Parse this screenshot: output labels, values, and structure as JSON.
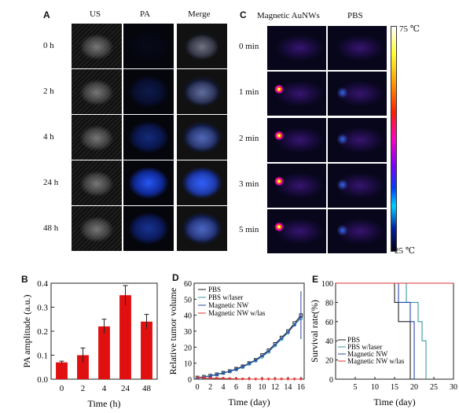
{
  "panels": {
    "A": "A",
    "B": "B",
    "C": "C",
    "D": "D",
    "E": "E"
  },
  "panel_a": {
    "columns": [
      "US",
      "PA",
      "Merge"
    ],
    "rows": [
      "0 h",
      "2 h",
      "4 h",
      "24 h",
      "48 h"
    ]
  },
  "panel_c": {
    "columns": [
      "Magnetic AuNWs",
      "PBS"
    ],
    "rows": [
      "0 min",
      "1 min",
      "2 min",
      "3 min",
      "5 min"
    ],
    "scale_max": "75 ℃",
    "scale_min": "25 ℃"
  },
  "colors": {
    "bar_fill": "#e01010",
    "pbs": "#222222",
    "pbs_laser": "#3a9aa0",
    "magnetic_nw": "#2a46a8",
    "magnetic_nw_laser": "#e03030"
  },
  "chart_data": [
    {
      "panel": "B",
      "type": "bar",
      "categories": [
        "0",
        "2",
        "4",
        "24",
        "48"
      ],
      "values": [
        0.07,
        0.1,
        0.22,
        0.35,
        0.24
      ],
      "errors": [
        0.005,
        0.03,
        0.03,
        0.04,
        0.03
      ],
      "xlabel": "Time (h)",
      "ylabel": "PA amplitude (a.u.)",
      "ylim": [
        0,
        0.4
      ],
      "yticks": [
        "0.0",
        "0.1",
        "0.2",
        "0.3",
        "0.4"
      ]
    },
    {
      "panel": "D",
      "type": "line",
      "x": [
        0,
        1,
        2,
        3,
        4,
        5,
        6,
        7,
        8,
        9,
        10,
        11,
        12,
        13,
        14,
        15,
        16
      ],
      "xticks": [
        "0",
        "2",
        "4",
        "6",
        "8",
        "10",
        "12",
        "14",
        "16"
      ],
      "yticks": [
        "0",
        "10",
        "20",
        "30",
        "40",
        "50",
        "60"
      ],
      "ylim": [
        0,
        60
      ],
      "xlabel": "Time (day)",
      "ylabel": "Relative tumor volume",
      "series": [
        {
          "name": "PBS",
          "values": [
            1,
            1.5,
            2.2,
            3,
            4,
            5,
            6.5,
            8,
            10,
            12,
            15,
            18,
            22,
            26,
            30,
            35,
            40
          ]
        },
        {
          "name": "PBS w/laser",
          "values": [
            1,
            1.4,
            2,
            2.8,
            3.8,
            4.8,
            6,
            7.5,
            9.5,
            11.5,
            14,
            17,
            21,
            25,
            29,
            34,
            38
          ]
        },
        {
          "name": "Magnetic NW",
          "values": [
            1,
            1.4,
            2,
            2.9,
            3.9,
            4.9,
            6.2,
            7.8,
            9.8,
            11.8,
            14.5,
            17.5,
            21.5,
            25.5,
            29.5,
            34,
            39
          ]
        },
        {
          "name": "Magnetic NW w/las",
          "values": [
            1,
            0.8,
            0.6,
            0.5,
            0.4,
            0.3,
            0.2,
            0.1,
            0,
            0,
            0,
            0,
            0,
            0,
            0,
            0,
            0
          ]
        }
      ]
    },
    {
      "panel": "E",
      "type": "line",
      "xticks": [
        "5",
        "10",
        "15",
        "20",
        "25",
        "30"
      ],
      "yticks": [
        "0",
        "20",
        "40",
        "60",
        "80",
        "100"
      ],
      "xlim": [
        0,
        30
      ],
      "ylim": [
        0,
        100
      ],
      "xlabel": "Time (day)",
      "ylabel": "Survival rate(%)",
      "series": [
        {
          "name": "PBS",
          "steps": [
            [
              0,
              100
            ],
            [
              15,
              100
            ],
            [
              15,
              80
            ],
            [
              16,
              80
            ],
            [
              16,
              60
            ],
            [
              19,
              60
            ],
            [
              19,
              0
            ]
          ]
        },
        {
          "name": "PBS w/laser",
          "steps": [
            [
              0,
              100
            ],
            [
              18,
              100
            ],
            [
              18,
              80
            ],
            [
              21,
              80
            ],
            [
              21,
              60
            ],
            [
              22,
              60
            ],
            [
              22,
              40
            ],
            [
              23,
              40
            ],
            [
              23,
              0
            ]
          ]
        },
        {
          "name": "Magnetic NW",
          "steps": [
            [
              0,
              100
            ],
            [
              16,
              100
            ],
            [
              16,
              80
            ],
            [
              19,
              80
            ],
            [
              19,
              60
            ],
            [
              20,
              60
            ],
            [
              20,
              0
            ]
          ]
        },
        {
          "name": "Magnetic NW w/las",
          "steps": [
            [
              0,
              100
            ],
            [
              30,
              100
            ]
          ]
        }
      ]
    }
  ]
}
